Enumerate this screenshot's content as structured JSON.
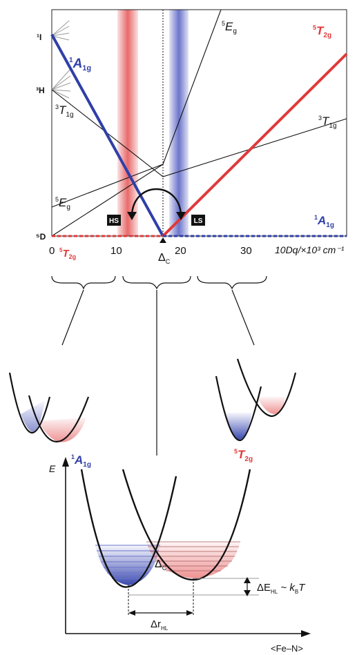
{
  "tanabe": {
    "term_left": {
      "I": "¹I",
      "H": "³H",
      "D": "⁵D"
    },
    "left_A1g_sup": "1",
    "left_A1g_main": "A",
    "left_A1g_sub": "1g",
    "Eg_top_sup": "5",
    "Eg_top_main": "E",
    "Eg_top_sub": "g",
    "T2g_top_sup": "5",
    "T2g_top_main": "T",
    "T2g_top_sub": "2g",
    "T1g_left_sup": "3",
    "T1g_left_main": "T",
    "T1g_left_sub": "1g",
    "T1g_right_sup": "3",
    "T1g_right_main": "T",
    "T1g_right_sub": "1g",
    "Eg_low_sup": "5",
    "Eg_low_main": "E",
    "Eg_low_sub": "g",
    "A1g_right_sup": "1",
    "A1g_right_main": "A",
    "A1g_right_sub": "1g",
    "hs_badge": "HS",
    "ls_badge": "LS",
    "x_ticks": [
      "0",
      "10",
      "20",
      "30"
    ],
    "x_T2g_sup": "5",
    "x_T2g_main": "T",
    "x_T2g_sub": "2g",
    "delta_c_main": "Δ",
    "delta_c_sub": "C",
    "axis_label": "10Dq/×10³ cm⁻¹",
    "colors": {
      "blue": "#2f3fa8",
      "red": "#e0393a"
    }
  },
  "potential": {
    "E_label": "E",
    "A1g_sup": "1",
    "A1g_main": "A",
    "A1g_sub": "1g",
    "T2g_sup": "5",
    "T2g_main": "T",
    "T2g_sub": "2g",
    "delta_c_main": "Δ",
    "delta_c_sub": "C",
    "dE_main": "ΔE",
    "dE_sub": "HL",
    "dE_rest": " ~ k",
    "dE_kb_sub": "B",
    "dE_T": "T",
    "dr_main": "Δr",
    "dr_sub": "HL",
    "x_axis_label": "<Fe–N>"
  }
}
